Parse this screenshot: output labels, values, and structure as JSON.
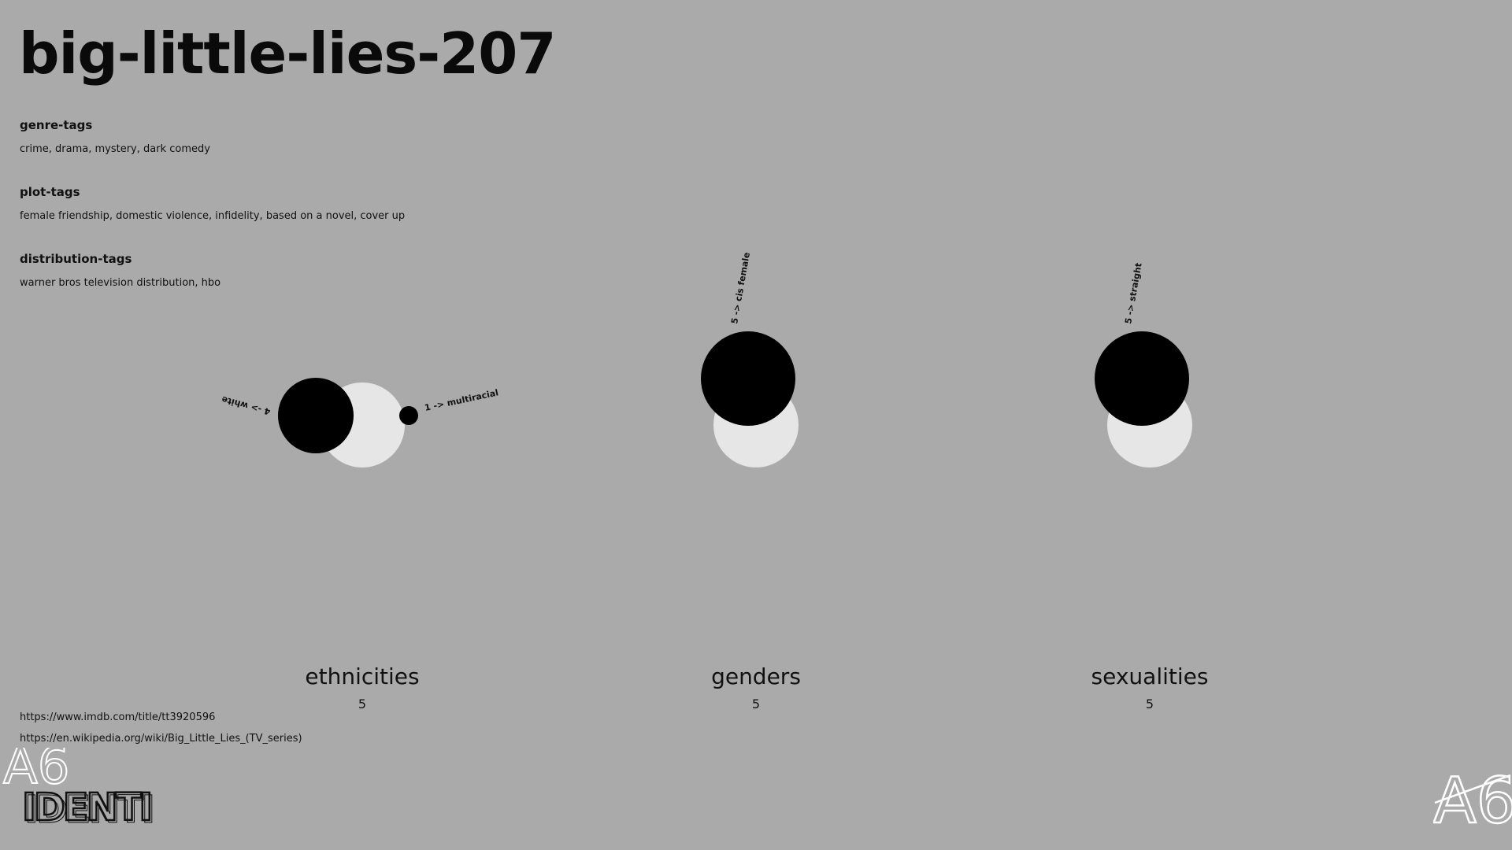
{
  "page_title": "big-little-lies-207",
  "tags": [
    {
      "heading": "genre-tags",
      "value": "crime, drama, mystery, dark comedy"
    },
    {
      "heading": "plot-tags",
      "value": "female friendship, domestic violence, infidelity, based on a novel, cover up"
    },
    {
      "heading": "distribution-tags",
      "value": "warner bros television distribution, hbo"
    }
  ],
  "links": [
    "https://www.imdb.com/title/tt3920596",
    "https://en.wikipedia.org/wiki/Big_Little_Lies_(TV_series)"
  ],
  "logo_text": "IDENTI",
  "colors": {
    "background": "#aaaaaa",
    "total_circle": "#e6e6e6",
    "group_circle": "#000000"
  },
  "chart_data": [
    {
      "type": "bubble",
      "category": "ethnicities",
      "total": "5",
      "groups": [
        {
          "label": "4 -> white",
          "count": 4
        },
        {
          "label": "1 -> multiracial",
          "count": 1
        }
      ]
    },
    {
      "type": "bubble",
      "category": "genders",
      "total": "5",
      "groups": [
        {
          "label": "5 -> cis female",
          "count": 5
        }
      ]
    },
    {
      "type": "bubble",
      "category": "sexualities",
      "total": "5",
      "groups": [
        {
          "label": "5 -> straight",
          "count": 5
        }
      ]
    }
  ]
}
